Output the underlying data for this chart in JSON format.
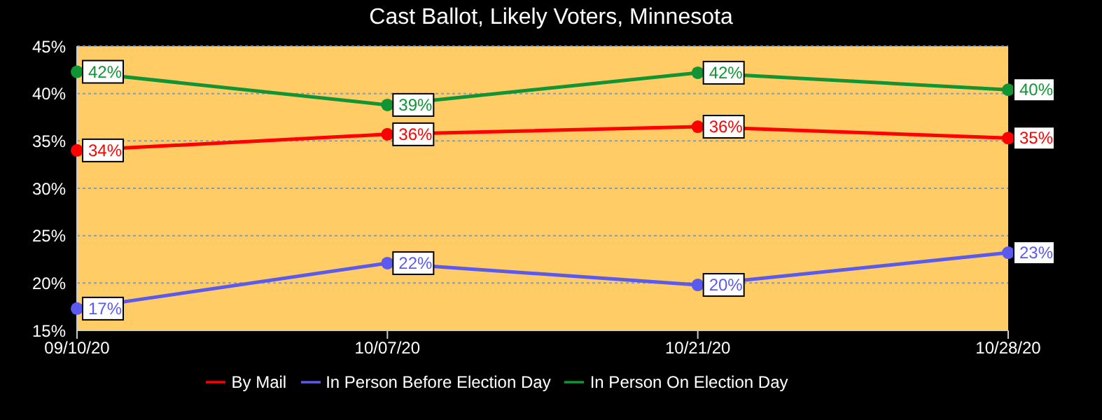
{
  "chart_data": {
    "type": "line",
    "title": "Cast Ballot, Likely Voters, Minnesota",
    "categories": [
      "09/10/20",
      "10/07/20",
      "10/21/20",
      "10/28/20"
    ],
    "series": [
      {
        "name": "By Mail",
        "color": "#ff0000",
        "values": [
          34.0,
          35.7,
          36.5,
          35.3
        ],
        "value_labels": [
          "34%",
          "36%",
          "36%",
          "35%"
        ]
      },
      {
        "name": "In Person Before Election Day",
        "color": "#5a5aee",
        "values": [
          17.3,
          22.1,
          19.8,
          23.2
        ],
        "value_labels": [
          "17%",
          "22%",
          "20%",
          "23%"
        ]
      },
      {
        "name": "In Person On Election Day",
        "color": "#119433",
        "values": [
          42.3,
          38.8,
          42.2,
          40.4
        ],
        "value_labels": [
          "42%",
          "39%",
          "42%",
          "40%"
        ]
      }
    ],
    "ylim": [
      15,
      45
    ],
    "yticks": [
      {
        "value": 15,
        "label": "15%"
      },
      {
        "value": 20,
        "label": "20%"
      },
      {
        "value": 25,
        "label": "25%"
      },
      {
        "value": 30,
        "label": "30%"
      },
      {
        "value": 35,
        "label": "35%"
      },
      {
        "value": 40,
        "label": "40%"
      },
      {
        "value": 45,
        "label": "45%"
      }
    ],
    "grid": "y",
    "legend": "bottom",
    "marker": "circle",
    "line_style": "solid"
  }
}
